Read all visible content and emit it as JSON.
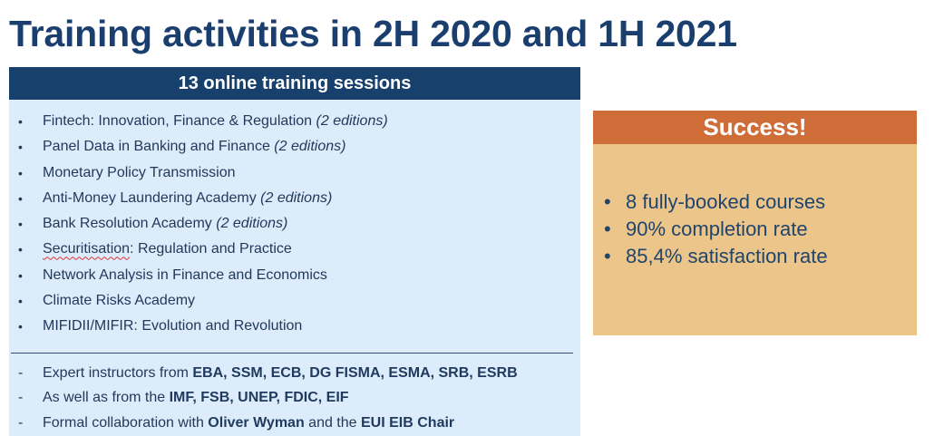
{
  "title": "Training activities in 2H 2020 and 1H 2021",
  "left_panel": {
    "header": "13 online training sessions",
    "courses": [
      {
        "name": "Fintech: Innovation, Finance & Regulation",
        "editions": "(2 editions)"
      },
      {
        "name": "Panel Data in Banking and Finance",
        "editions": "(2 editions)"
      },
      {
        "name": "Monetary Policy Transmission",
        "editions": ""
      },
      {
        "name": "Anti-Money Laundering Academy",
        "editions": "(2 editions)"
      },
      {
        "name": "Bank Resolution Academy",
        "editions": "(2 editions)"
      },
      {
        "name_underlined": "Securitisation",
        "name_rest": ": Regulation and Practice",
        "editions": ""
      },
      {
        "name": "Network Analysis in Finance and Economics",
        "editions": ""
      },
      {
        "name": "Climate Risks Academy",
        "editions": ""
      },
      {
        "name": "MIFIDII/MIFIR: Evolution and Revolution",
        "editions": ""
      }
    ],
    "notes": [
      {
        "prefix": "Expert instructors from ",
        "bold": "EBA, SSM, ECB, DG FISMA, ESMA, SRB, ESRB"
      },
      {
        "prefix": "As well as from the ",
        "bold": "IMF, FSB, UNEP, FDIC, EIF"
      },
      {
        "prefix": "Formal collaboration with ",
        "bold": "Oliver Wyman",
        "middle": " and the ",
        "bold2": "EUI EIB Chair"
      }
    ],
    "bullet": "•",
    "dash": "-"
  },
  "right_panel": {
    "header": "Success!",
    "stats": [
      "8 fully-booked courses",
      "90% completion rate",
      "85,4% satisfaction rate"
    ],
    "bullet": "•"
  },
  "colors": {
    "title": "#1a3f6e",
    "left_header_bg": "#17406c",
    "left_bg": "#dcecfb",
    "right_header_bg": "#cf6d38",
    "right_bg": "#ecc58a"
  }
}
